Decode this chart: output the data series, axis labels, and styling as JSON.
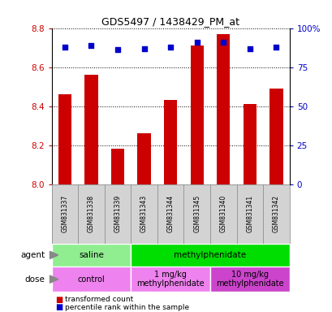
{
  "title": "GDS5497 / 1438429_PM_at",
  "samples": [
    "GSM831337",
    "GSM831338",
    "GSM831339",
    "GSM831343",
    "GSM831344",
    "GSM831345",
    "GSM831340",
    "GSM831341",
    "GSM831342"
  ],
  "bar_values": [
    8.46,
    8.56,
    8.18,
    8.26,
    8.43,
    8.71,
    8.77,
    8.41,
    8.49
  ],
  "percentile_values": [
    88,
    89,
    86,
    87,
    88,
    91,
    91,
    87,
    88
  ],
  "bar_bottom": 8.0,
  "ylim_left": [
    8.0,
    8.8
  ],
  "ylim_right": [
    0,
    100
  ],
  "yticks_left": [
    8.0,
    8.2,
    8.4,
    8.6,
    8.8
  ],
  "yticks_right": [
    0,
    25,
    50,
    75,
    100
  ],
  "bar_color": "#cc0000",
  "dot_color": "#0000cc",
  "agent_groups": [
    {
      "label": "saline",
      "start": 0,
      "end": 3,
      "color": "#90ee90"
    },
    {
      "label": "methylphenidate",
      "start": 3,
      "end": 9,
      "color": "#00dd00"
    }
  ],
  "dose_groups": [
    {
      "label": "control",
      "start": 0,
      "end": 3,
      "color": "#ee82ee"
    },
    {
      "label": "1 mg/kg\nmethylphenidate",
      "start": 3,
      "end": 6,
      "color": "#ee82ee"
    },
    {
      "label": "10 mg/kg\nmethylphenidate",
      "start": 6,
      "end": 9,
      "color": "#cc44cc"
    }
  ],
  "legend_items": [
    {
      "color": "#cc0000",
      "label": "transformed count"
    },
    {
      "color": "#0000cc",
      "label": "percentile rank within the sample"
    }
  ],
  "grid_linestyle": "dotted",
  "tick_label_color_left": "#cc0000",
  "tick_label_color_right": "#0000cc",
  "sample_bg": "#d3d3d3",
  "bar_width": 0.5
}
